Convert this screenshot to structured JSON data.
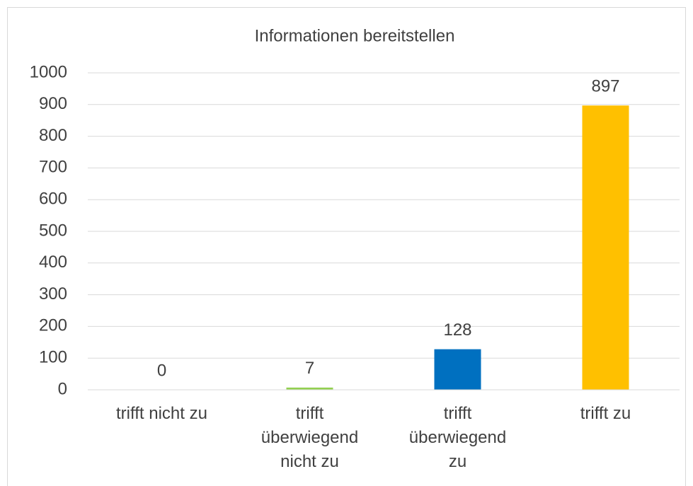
{
  "chart_data": {
    "type": "bar",
    "title": "Informationen bereitstellen",
    "categories": [
      "trifft nicht zu",
      "trifft überwiegend nicht zu",
      "trifft überwiegend zu",
      "trifft zu"
    ],
    "values": [
      0,
      7,
      128,
      897
    ],
    "colors": [
      "#ed7d31",
      "#92d050",
      "#0070c0",
      "#ffc000"
    ],
    "ylim": [
      0,
      1000
    ],
    "yticks": [
      0,
      100,
      200,
      300,
      400,
      500,
      600,
      700,
      800,
      900,
      1000
    ],
    "grid": true
  }
}
